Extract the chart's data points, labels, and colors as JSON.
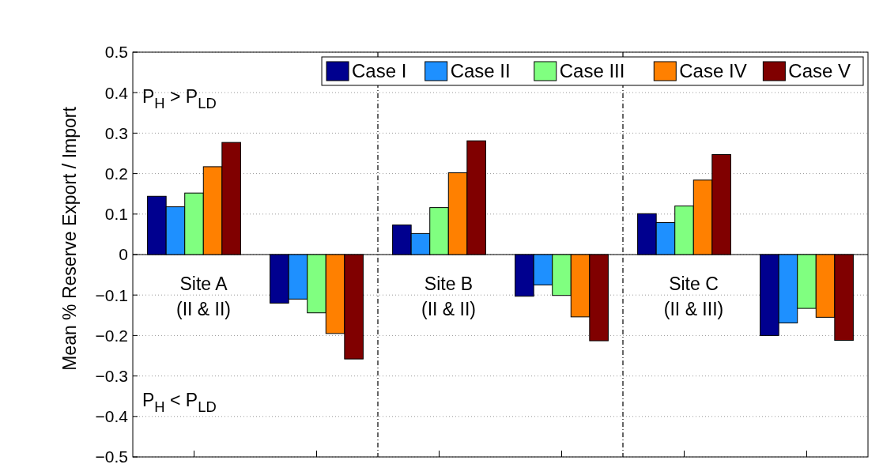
{
  "chart_data": {
    "type": "bar",
    "ylabel": "Mean % Reserve Export / Import",
    "categories": [
      null,
      null,
      null,
      null,
      null,
      null
    ],
    "series": [
      {
        "name": "Case I",
        "color": "#00008f",
        "values": [
          0.144,
          -0.12,
          0.073,
          -0.103,
          0.101,
          -0.2
        ]
      },
      {
        "name": "Case II",
        "color": "#1e90ff",
        "values": [
          0.118,
          -0.11,
          0.052,
          -0.075,
          0.079,
          -0.169
        ]
      },
      {
        "name": "Case III",
        "color": "#80ff80",
        "values": [
          0.152,
          -0.144,
          0.116,
          -0.101,
          0.12,
          -0.133
        ]
      },
      {
        "name": "Case IV",
        "color": "#ff8000",
        "values": [
          0.217,
          -0.195,
          0.202,
          -0.154,
          0.184,
          -0.155
        ]
      },
      {
        "name": "Case V",
        "color": "#800000",
        "values": [
          0.277,
          -0.258,
          0.281,
          -0.213,
          0.247,
          -0.212
        ]
      }
    ],
    "ylim": [
      -0.5,
      0.5
    ],
    "yticks": [
      {
        "value": -0.5,
        "label": "−0.5"
      },
      {
        "value": -0.4,
        "label": "−0.4"
      },
      {
        "value": -0.3,
        "label": "−0.3"
      },
      {
        "value": -0.2,
        "label": "−0.2"
      },
      {
        "value": -0.1,
        "label": "−0.1"
      },
      0,
      0.1,
      0.2,
      0.3,
      0.4,
      0.5
    ],
    "grid": "y",
    "legend": "top right",
    "annotations": [
      "Site A",
      "(II & II)",
      "Site B",
      "(II & II)",
      "Site C",
      "(II & III)",
      "P$_{H}$ > P$_{LD}$",
      "P$_{H}$ < P$_{LD}$"
    ]
  }
}
